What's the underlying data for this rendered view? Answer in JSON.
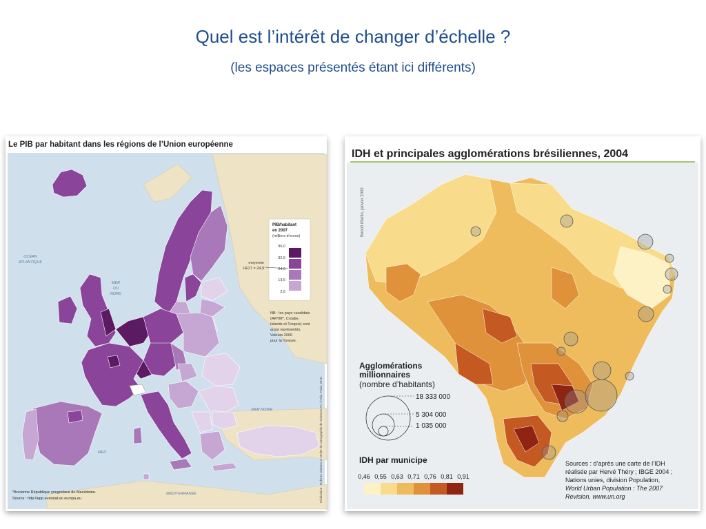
{
  "slide": {
    "title": "Quel est l’intérêt de changer d’échelle ?",
    "subtitle": "(les espaces présentés étant ici différents)"
  },
  "eu_map": {
    "title": "Le PIB par habitant dans les régions de l’Union européenne",
    "legend": {
      "title_line1": "PIB/habitant",
      "title_line2": "en 2007",
      "title_line3": "(milliers d’euros)",
      "breaks": [
        "96,0",
        "32,6",
        "24,0",
        "13,5",
        "2,6"
      ],
      "colors": [
        "#5c1a63",
        "#8a449a",
        "#a878b8",
        "#c6a6d2",
        "#e2d2ea"
      ],
      "average_line1": "moyenne",
      "average_line2": "UE27 = 24,9"
    },
    "note_lines": [
      "NB : les pays candidats",
      "(ARYM*, Croatie,",
      "Islande et Turquie) sont",
      "aussi représentés.",
      "Valeurs 2006",
      "pour la Turquie."
    ],
    "seas": {
      "ocean_line1": "OCÉAN",
      "ocean_line2": "ATLANTIQUE",
      "north_line1": "MER",
      "north_line2": "DU",
      "north_line3": "NORD",
      "black_sea": "MER NOIRE",
      "med_line1": "MER",
      "med_line2": "MÉDITERRANÉE"
    },
    "footnote": "*Ancienne République yougoslave de Macédoine.",
    "source": "Source : http://epp.eurostat.ec.europa.eu",
    "credit": "Réalisation : Roberto Gimeno et Atelier de cartographie de Sciences Po. © Elix, Paris, 2010."
  },
  "br_map": {
    "title": "IDH et principales agglomérations brésiliennes, 2004",
    "credit": "Benoît Martin, janvier 2009",
    "agglo": {
      "title_line1": "Agglomérations",
      "title_line2": "millionnaires",
      "subtitle": "(nombre d’habitants)",
      "values": [
        "18 333 000",
        "5 304 000",
        "1 035 000"
      ]
    },
    "idh": {
      "title": "IDH par municipe",
      "breaks": [
        "0,46",
        "0,55",
        "0,63",
        "0,71",
        "0,76",
        "0,81",
        "0,91"
      ],
      "colors": [
        "#fdf2c6",
        "#f8dc8c",
        "#efbc5d",
        "#e0923a",
        "#c45a22",
        "#8f2412"
      ]
    },
    "sources_lines": [
      "Sources : d’après une carte de l’IDH",
      "réalisée par Hervé Théry ; IBGE 2004 ;",
      "Nations unies, division Population,",
      "World Urban Population : The 2007",
      "Revision, www.un.org"
    ]
  }
}
